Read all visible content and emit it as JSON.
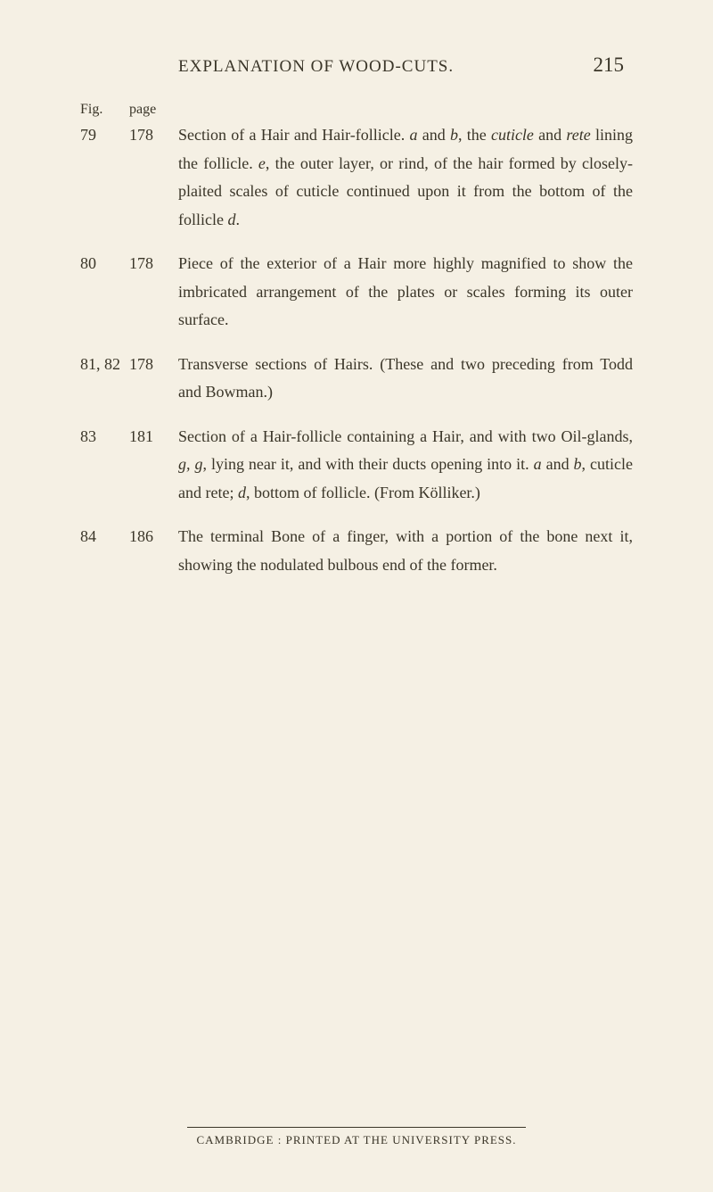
{
  "header": {
    "title": "EXPLANATION OF WOOD-CUTS.",
    "pageNumber": "215"
  },
  "labels": {
    "fig": "Fig.",
    "page": "page"
  },
  "entries": [
    {
      "fig": "79",
      "page": "178",
      "desc_parts": [
        {
          "t": "Section of a Hair and Hair-follicle. ",
          "i": false
        },
        {
          "t": "a",
          "i": true
        },
        {
          "t": " and ",
          "i": false
        },
        {
          "t": "b",
          "i": true
        },
        {
          "t": ", the ",
          "i": false
        },
        {
          "t": "cuticle",
          "i": true
        },
        {
          "t": " and ",
          "i": false
        },
        {
          "t": "rete",
          "i": true
        },
        {
          "t": " lining the follicle. ",
          "i": false
        },
        {
          "t": "e",
          "i": true
        },
        {
          "t": ", the outer layer, or rind, of the hair formed by closely-plaited scales of cuticle continued upon it from the bottom of the follicle ",
          "i": false
        },
        {
          "t": "d",
          "i": true
        },
        {
          "t": ".",
          "i": false
        }
      ]
    },
    {
      "fig": "80",
      "page": "178",
      "desc_parts": [
        {
          "t": "Piece of the exterior of a Hair more highly magnified to show the imbricated arrangement of the plates or scales forming its outer surface.",
          "i": false
        }
      ]
    },
    {
      "fig": "81, 82",
      "page": "178",
      "desc_parts": [
        {
          "t": "Transverse sections of Hairs. (These and two preceding from Todd and Bowman.)",
          "i": false
        }
      ]
    },
    {
      "fig": "83",
      "page": "181",
      "desc_parts": [
        {
          "t": "Section of a Hair-follicle containing a Hair, and with two Oil-glands, ",
          "i": false
        },
        {
          "t": "g, g",
          "i": true
        },
        {
          "t": ", lying near it, and with their ducts opening into it. ",
          "i": false
        },
        {
          "t": "a",
          "i": true
        },
        {
          "t": " and ",
          "i": false
        },
        {
          "t": "b",
          "i": true
        },
        {
          "t": ", cuticle and rete; ",
          "i": false
        },
        {
          "t": "d",
          "i": true
        },
        {
          "t": ", bottom of follicle. (From Kölliker.)",
          "i": false
        }
      ]
    },
    {
      "fig": "84",
      "page": "186",
      "desc_parts": [
        {
          "t": "The terminal Bone of a finger, with a portion of the bone next it, showing the nodulated bulbous end of the former.",
          "i": false
        }
      ]
    }
  ],
  "footer": {
    "text": "CAMBRIDGE : PRINTED AT THE UNIVERSITY PRESS."
  }
}
